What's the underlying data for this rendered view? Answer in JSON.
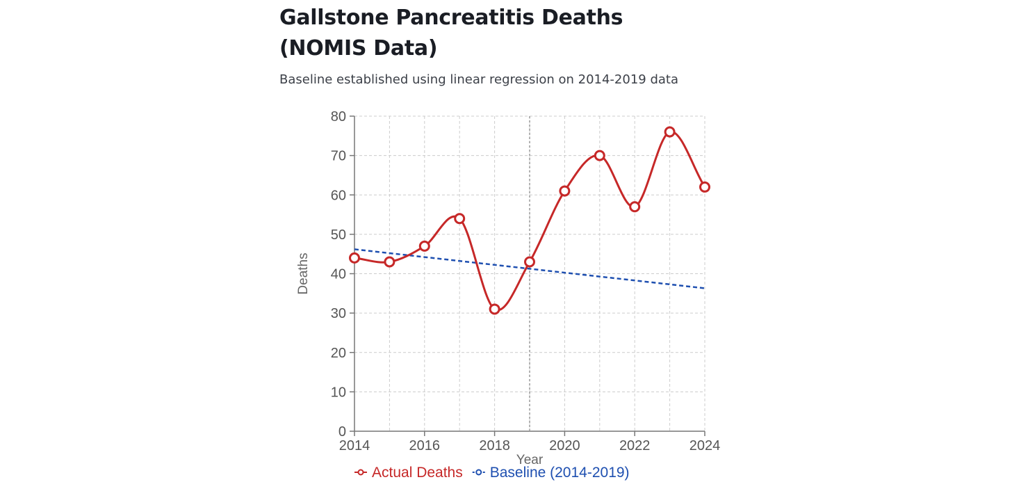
{
  "chart_data": {
    "type": "line",
    "title": "Gallstone Pancreatitis Deaths (NOMIS Data)",
    "subtitle": "Baseline established using linear regression on 2014-2019 data",
    "xlabel": "Year",
    "ylabel": "Deaths",
    "xlim": [
      2014,
      2024
    ],
    "ylim": [
      0,
      80
    ],
    "xticks": [
      2014,
      2016,
      2018,
      2020,
      2022,
      2024
    ],
    "yticks": [
      0,
      10,
      20,
      30,
      40,
      50,
      60,
      70,
      80
    ],
    "grid": true,
    "reference_line_x": 2019,
    "legend_position": "bottom",
    "x": [
      2014,
      2015,
      2016,
      2017,
      2018,
      2019,
      2020,
      2021,
      2022,
      2023,
      2024
    ],
    "series": [
      {
        "name": "Actual Deaths",
        "color": "#c62828",
        "style": "smooth-markers",
        "values": [
          44,
          43,
          47,
          54,
          31,
          43,
          61,
          70,
          57,
          76,
          62
        ]
      },
      {
        "name": "Baseline (2014-2019)",
        "color": "#1e4fb0",
        "style": "dashed",
        "values": [
          46.2,
          45.2,
          44.2,
          43.2,
          42.2,
          41.2,
          40.2,
          39.3,
          38.3,
          37.3,
          36.3
        ]
      }
    ]
  }
}
